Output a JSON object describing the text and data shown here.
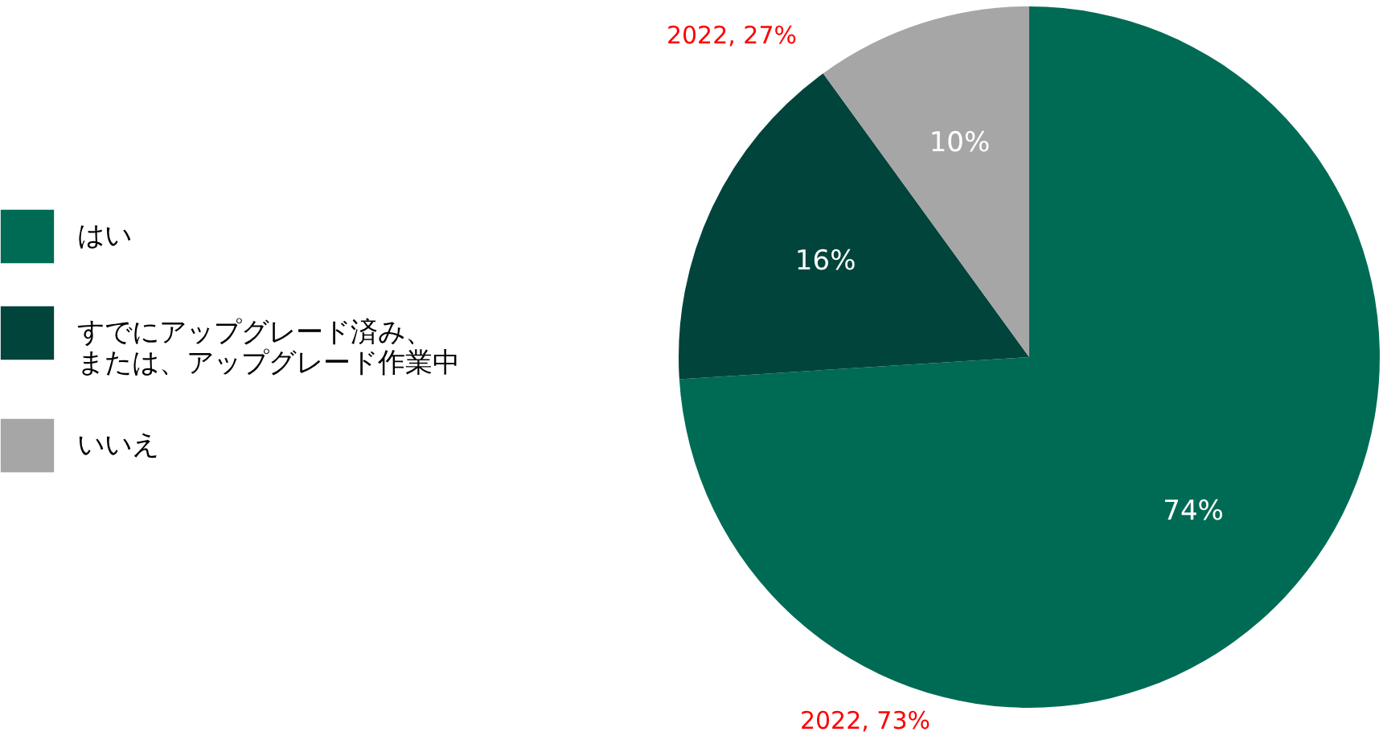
{
  "chart_data": {
    "type": "pie",
    "categories": [
      "はい",
      "すでにアップグレード済み、または、アップグレード作業中",
      "いいえ"
    ],
    "values": [
      74,
      16,
      10
    ],
    "colors": [
      "#006b54",
      "#00443b",
      "#a6a6a6"
    ],
    "value_labels": [
      "74%",
      "16%",
      "10%"
    ],
    "legend": "left",
    "annotations": [
      "2022, 27%",
      "2022, 73%"
    ]
  }
}
